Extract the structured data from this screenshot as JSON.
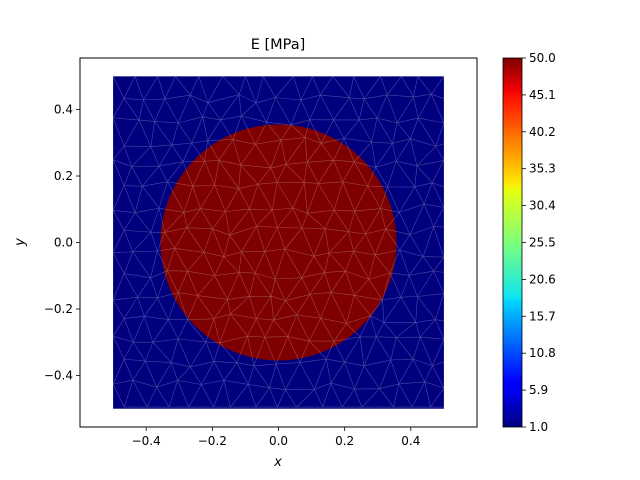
{
  "chart_data": {
    "type": "heatmap",
    "title": "E [MPa]",
    "xlabel": "x",
    "ylabel": "y",
    "xlim": [
      -0.6,
      0.6
    ],
    "ylim": [
      -0.555,
      0.555
    ],
    "x_ticks": [
      -0.4,
      -0.2,
      0.0,
      0.2,
      0.4
    ],
    "x_tick_labels": [
      "−0.4",
      "−0.2",
      "0.0",
      "0.2",
      "0.4"
    ],
    "y_ticks": [
      -0.4,
      -0.2,
      0.0,
      0.2,
      0.4
    ],
    "y_tick_labels": [
      "−0.4",
      "−0.2",
      "0.0",
      "0.2",
      "0.4"
    ],
    "domain": {
      "x_min": -0.5,
      "x_max": 0.5,
      "y_min": -0.5,
      "y_max": 0.5
    },
    "inclusion": {
      "shape": "circle",
      "center": [
        0.0,
        0.0
      ],
      "radius": 0.355
    },
    "regions": [
      {
        "name": "matrix",
        "value": 1.0,
        "color": "#00007f"
      },
      {
        "name": "inclusion",
        "value": 50.0,
        "color": "#7f0000"
      }
    ],
    "mesh": "triangular",
    "colormap": "jet",
    "colorbar": {
      "min": 1.0,
      "max": 50.0,
      "ticks": [
        1.0,
        5.9,
        10.8,
        15.7,
        20.6,
        25.5,
        30.4,
        35.3,
        40.2,
        45.1,
        50.0
      ],
      "tick_labels": [
        "1.0",
        "5.9",
        "10.8",
        "15.7",
        "20.6",
        "25.5",
        "30.4",
        "35.3",
        "40.2",
        "45.1",
        "50.0"
      ]
    }
  }
}
